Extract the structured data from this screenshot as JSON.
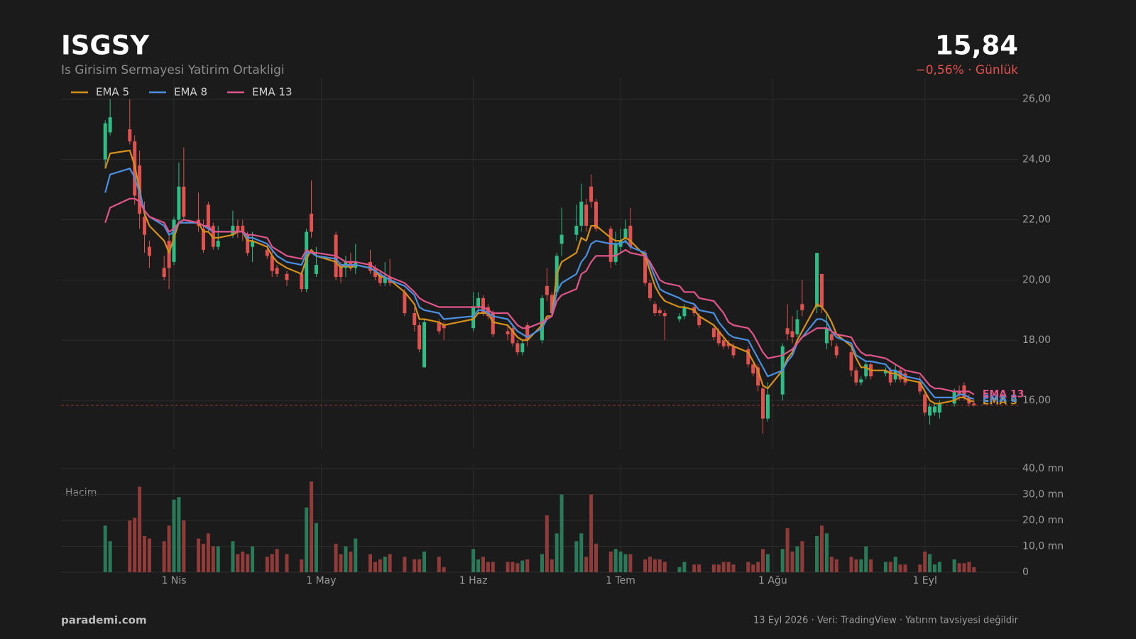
{
  "chart_data": {
    "type": "candlestick",
    "title": "ISGSY",
    "subtitle": "Is Girisim Sermayesi Yatirim Ortakligi",
    "last_price": {
      "value": 15.84,
      "label": "15,84"
    },
    "change_label": "−0,56%  ·  Günlük",
    "up_color": "#2dbd85",
    "down_color": "#e0524f",
    "x": [
      "2026-03-18",
      "2026-03-19",
      "2026-03-23",
      "2026-03-24",
      "2026-03-25",
      "2026-03-26",
      "2026-03-27",
      "2026-03-30",
      "2026-03-31",
      "2026-04-01",
      "2026-04-02",
      "2026-04-03",
      "2026-04-06",
      "2026-04-07",
      "2026-04-08",
      "2026-04-09",
      "2026-04-10",
      "2026-04-13",
      "2026-04-14",
      "2026-04-15",
      "2026-04-16",
      "2026-04-17",
      "2026-04-20",
      "2026-04-21",
      "2026-04-22",
      "2026-04-24",
      "2026-04-27",
      "2026-04-28",
      "2026-04-29",
      "2026-04-30",
      "2026-05-04",
      "2026-05-05",
      "2026-05-06",
      "2026-05-07",
      "2026-05-08",
      "2026-05-11",
      "2026-05-12",
      "2026-05-13",
      "2026-05-14",
      "2026-05-15",
      "2026-05-18",
      "2026-05-20",
      "2026-05-21",
      "2026-05-22",
      "2026-05-25",
      "2026-05-26",
      "2026-06-01",
      "2026-06-02",
      "2026-06-03",
      "2026-06-04",
      "2026-06-05",
      "2026-06-08",
      "2026-06-09",
      "2026-06-10",
      "2026-06-11",
      "2026-06-12",
      "2026-06-15",
      "2026-06-16",
      "2026-06-17",
      "2026-06-18",
      "2026-06-19",
      "2026-06-22",
      "2026-06-23",
      "2026-06-24",
      "2026-06-25",
      "2026-06-26",
      "2026-06-29",
      "2026-06-30",
      "2026-07-01",
      "2026-07-02",
      "2026-07-03",
      "2026-07-06",
      "2026-07-07",
      "2026-07-08",
      "2026-07-09",
      "2026-07-10",
      "2026-07-13",
      "2026-07-14",
      "2026-07-16",
      "2026-07-17",
      "2026-07-20",
      "2026-07-21",
      "2026-07-22",
      "2026-07-23",
      "2026-07-24",
      "2026-07-27",
      "2026-07-28",
      "2026-07-29",
      "2026-07-30",
      "2026-07-31",
      "2026-08-03",
      "2026-08-04",
      "2026-08-05",
      "2026-08-06",
      "2026-08-07",
      "2026-08-10",
      "2026-08-11",
      "2026-08-12",
      "2026-08-13",
      "2026-08-14",
      "2026-08-17",
      "2026-08-18",
      "2026-08-19",
      "2026-08-20",
      "2026-08-21",
      "2026-08-24",
      "2026-08-25",
      "2026-08-26",
      "2026-08-27",
      "2026-08-28",
      "2026-08-31",
      "2026-09-01",
      "2026-09-02",
      "2026-09-03",
      "2026-09-04",
      "2026-09-07",
      "2026-09-08",
      "2026-09-09",
      "2026-09-10",
      "2026-09-11"
    ],
    "open": [
      24.0,
      24.9,
      25.0,
      24.6,
      23.8,
      22.1,
      21.1,
      20.4,
      21.3,
      20.6,
      22.0,
      23.1,
      22.0,
      21.7,
      22.5,
      21.8,
      21.1,
      21.5,
      21.8,
      21.8,
      21.5,
      21.1,
      21.0,
      20.8,
      20.4,
      20.2,
      20.2,
      19.7,
      22.2,
      20.2,
      21.5,
      20.5,
      20.4,
      20.6,
      20.4,
      20.6,
      20.4,
      20.2,
      19.9,
      20.1,
      19.6,
      18.9,
      18.5,
      17.1,
      18.6,
      18.5,
      18.4,
      19.1,
      19.4,
      19.1,
      18.9,
      18.3,
      18.4,
      17.9,
      17.6,
      18.5,
      18.0,
      19.8,
      19.5,
      19.6,
      21.2,
      21.5,
      21.8,
      22.5,
      23.1,
      22.6,
      21.7,
      20.6,
      21.1,
      21.4,
      21.8,
      20.9,
      19.9,
      19.2,
      19.0,
      18.9,
      18.7,
      18.8,
      19.1,
      18.8,
      18.4,
      18.3,
      18.0,
      17.9,
      17.8,
      17.7,
      17.2,
      17.1,
      16.4,
      15.4,
      16.2,
      18.4,
      18.3,
      18.2,
      19.2,
      19.1,
      20.2,
      17.9,
      18.2,
      17.8,
      17.6,
      17.0,
      16.6,
      16.8,
      17.2,
      16.9,
      17.0,
      16.7,
      17.0,
      16.9,
      16.6,
      16.2,
      15.5,
      15.6,
      15.6,
      15.9,
      16.3,
      16.5,
      16.1,
      15.9
    ],
    "high": [
      25.3,
      26.0,
      26.0,
      24.8,
      24.3,
      22.6,
      21.3,
      20.8,
      21.5,
      22.1,
      23.9,
      24.4,
      22.9,
      22.0,
      22.6,
      21.9,
      21.8,
      22.3,
      22.0,
      22.0,
      21.6,
      21.6,
      21.2,
      21.0,
      20.5,
      20.3,
      20.3,
      21.7,
      23.3,
      21.1,
      21.6,
      20.6,
      20.8,
      20.9,
      21.2,
      21.0,
      20.5,
      20.3,
      20.6,
      20.7,
      19.7,
      19.1,
      18.6,
      18.7,
      18.7,
      18.6,
      19.6,
      19.6,
      19.5,
      19.2,
      19.0,
      18.5,
      18.5,
      18.0,
      18.0,
      18.6,
      19.5,
      20.4,
      19.6,
      20.9,
      22.4,
      22.5,
      23.2,
      22.7,
      23.5,
      22.7,
      21.8,
      21.6,
      21.7,
      22.0,
      22.4,
      21.0,
      20.0,
      19.3,
      19.1,
      19.0,
      18.9,
      19.2,
      19.2,
      18.9,
      18.5,
      18.4,
      18.1,
      18.0,
      17.9,
      17.8,
      17.3,
      17.2,
      16.5,
      16.6,
      17.9,
      19.2,
      18.8,
      19.0,
      20.0,
      20.9,
      20.2,
      18.9,
      18.3,
      17.9,
      17.7,
      17.1,
      16.8,
      17.3,
      17.3,
      17.1,
      17.1,
      17.2,
      17.1,
      17.0,
      16.8,
      16.3,
      15.9,
      15.9,
      16.0,
      16.4,
      16.5,
      16.6,
      16.2,
      16.0
    ],
    "low": [
      23.7,
      24.8,
      24.5,
      22.5,
      21.7,
      20.9,
      20.4,
      20.0,
      19.7,
      20.5,
      21.9,
      22.0,
      21.6,
      20.9,
      21.6,
      21.0,
      21.0,
      21.4,
      21.4,
      21.3,
      20.8,
      20.6,
      20.7,
      20.1,
      20.1,
      19.8,
      19.6,
      19.6,
      21.4,
      20.1,
      20.0,
      19.9,
      20.1,
      20.3,
      20.2,
      20.2,
      20.0,
      19.8,
      19.8,
      19.8,
      18.8,
      18.3,
      17.6,
      17.1,
      18.2,
      18.0,
      18.3,
      18.9,
      18.8,
      18.7,
      18.1,
      18.0,
      17.8,
      17.5,
      17.5,
      17.8,
      17.9,
      19.3,
      18.8,
      19.5,
      20.8,
      21.3,
      21.6,
      21.6,
      22.4,
      21.6,
      20.4,
      20.5,
      20.9,
      21.2,
      21.0,
      19.8,
      19.3,
      18.8,
      18.8,
      18.0,
      18.6,
      18.7,
      18.8,
      18.4,
      18.0,
      17.8,
      17.7,
      17.7,
      17.4,
      17.1,
      16.8,
      16.3,
      14.9,
      15.3,
      16.0,
      18.0,
      17.9,
      18.1,
      18.8,
      18.9,
      18.9,
      17.7,
      17.8,
      17.4,
      16.8,
      16.5,
      16.5,
      16.7,
      16.7,
      16.8,
      16.5,
      16.6,
      16.6,
      16.5,
      16.2,
      15.5,
      15.2,
      15.5,
      15.4,
      15.8,
      16.0,
      16.0,
      15.8,
      15.8
    ],
    "close": [
      25.2,
      25.4,
      24.6,
      22.8,
      22.2,
      21.5,
      20.8,
      20.1,
      20.4,
      22.0,
      23.1,
      22.1,
      21.8,
      21.0,
      21.7,
      21.1,
      21.3,
      21.8,
      21.6,
      21.6,
      20.9,
      21.3,
      20.8,
      20.3,
      20.2,
      20.0,
      19.7,
      21.6,
      21.6,
      20.5,
      20.1,
      20.1,
      20.6,
      20.4,
      20.6,
      20.3,
      20.1,
      19.9,
      20.1,
      19.9,
      18.9,
      18.5,
      17.7,
      18.6,
      18.3,
      18.4,
      19.1,
      19.4,
      18.9,
      18.8,
      18.2,
      18.2,
      17.9,
      17.6,
      17.9,
      18.0,
      19.4,
      19.5,
      18.9,
      20.8,
      21.5,
      21.8,
      22.6,
      21.8,
      22.6,
      21.7,
      20.6,
      21.2,
      21.3,
      21.7,
      21.1,
      19.9,
      19.4,
      18.9,
      18.9,
      18.8,
      18.8,
      19.1,
      18.9,
      18.5,
      18.1,
      17.9,
      17.8,
      17.8,
      17.5,
      17.2,
      16.9,
      16.5,
      15.4,
      16.2,
      17.8,
      18.2,
      18.1,
      18.7,
      19.0,
      20.9,
      19.1,
      18.4,
      18.0,
      17.5,
      17.0,
      16.6,
      16.7,
      17.2,
      16.8,
      17.0,
      16.6,
      17.0,
      16.7,
      16.6,
      16.3,
      15.6,
      15.8,
      15.8,
      15.9,
      16.3,
      16.2,
      16.1,
      15.9,
      15.84
    ],
    "series": [
      {
        "name": "EMA 5",
        "color": "#d4901a",
        "values": [
          23.7,
          24.2,
          24.3,
          23.8,
          23.0,
          22.2,
          21.8,
          21.3,
          20.9,
          21.4,
          21.9,
          21.9,
          21.9,
          21.6,
          21.6,
          21.4,
          21.4,
          21.5,
          21.6,
          21.6,
          21.3,
          21.3,
          21.1,
          20.8,
          20.6,
          20.4,
          20.2,
          20.7,
          21.0,
          20.8,
          20.6,
          20.4,
          20.5,
          20.4,
          20.5,
          20.4,
          20.3,
          20.1,
          20.1,
          20.0,
          19.6,
          19.2,
          18.7,
          18.7,
          18.6,
          18.5,
          18.7,
          18.9,
          18.9,
          18.9,
          18.6,
          18.5,
          18.3,
          18.1,
          18.0,
          18.0,
          18.5,
          18.8,
          18.8,
          20.2,
          20.6,
          20.9,
          21.4,
          21.3,
          21.8,
          21.8,
          21.4,
          21.3,
          21.3,
          21.4,
          21.3,
          20.8,
          20.3,
          19.8,
          19.5,
          19.3,
          19.1,
          19.1,
          19.0,
          18.8,
          18.5,
          18.3,
          18.1,
          17.9,
          17.8,
          17.6,
          17.3,
          17.0,
          16.5,
          16.4,
          17.0,
          17.4,
          17.6,
          18.0,
          18.3,
          19.2,
          19.1,
          18.9,
          18.6,
          18.2,
          17.8,
          17.4,
          17.1,
          17.1,
          17.0,
          17.0,
          16.9,
          16.9,
          16.8,
          16.7,
          16.6,
          16.3,
          16.0,
          15.9,
          15.9,
          16.0,
          16.1,
          16.1,
          16.0,
          15.97
        ]
      },
      {
        "name": "EMA 8",
        "color": "#4a8fe0",
        "values": [
          22.9,
          23.5,
          23.7,
          23.4,
          22.9,
          22.3,
          22.1,
          21.8,
          21.5,
          21.6,
          21.9,
          21.9,
          21.9,
          21.8,
          21.7,
          21.6,
          21.6,
          21.6,
          21.6,
          21.6,
          21.4,
          21.4,
          21.2,
          21.0,
          20.8,
          20.6,
          20.5,
          20.9,
          20.9,
          20.8,
          20.7,
          20.5,
          20.5,
          20.5,
          20.5,
          20.4,
          20.3,
          20.2,
          20.1,
          20.0,
          19.8,
          19.5,
          19.1,
          19.0,
          18.9,
          18.7,
          18.8,
          19.0,
          19.0,
          18.9,
          18.8,
          18.7,
          18.5,
          18.3,
          18.2,
          18.1,
          18.4,
          18.7,
          18.8,
          19.6,
          19.9,
          20.2,
          20.6,
          20.8,
          21.2,
          21.3,
          21.2,
          21.2,
          21.2,
          21.3,
          21.1,
          20.9,
          20.5,
          20.1,
          19.7,
          19.6,
          19.4,
          19.3,
          19.2,
          19.0,
          18.9,
          18.6,
          18.4,
          18.2,
          18.1,
          18.0,
          17.7,
          17.4,
          17.1,
          16.8,
          17.0,
          17.3,
          17.5,
          17.9,
          18.1,
          18.7,
          18.7,
          18.6,
          18.3,
          18.1,
          17.9,
          17.5,
          17.4,
          17.3,
          17.3,
          17.2,
          17.0,
          17.0,
          16.9,
          16.8,
          16.7,
          16.5,
          16.3,
          16.1,
          16.1,
          16.1,
          16.2,
          16.2,
          16.1,
          16.05
        ]
      },
      {
        "name": "EMA 13",
        "color": "#e0558a",
        "values": [
          21.9,
          22.4,
          22.7,
          22.7,
          22.6,
          22.3,
          22.1,
          21.9,
          21.6,
          21.7,
          21.9,
          22.0,
          21.9,
          21.8,
          21.8,
          21.6,
          21.6,
          21.6,
          21.6,
          21.6,
          21.5,
          21.5,
          21.4,
          21.1,
          21.0,
          20.8,
          20.7,
          21.0,
          20.9,
          20.9,
          20.8,
          20.7,
          20.6,
          20.6,
          20.6,
          20.5,
          20.4,
          20.3,
          20.2,
          20.1,
          19.9,
          19.6,
          19.4,
          19.3,
          19.1,
          19.1,
          19.1,
          19.1,
          19.1,
          19.0,
          18.9,
          18.9,
          18.7,
          18.5,
          18.4,
          18.4,
          18.6,
          18.7,
          18.8,
          19.3,
          19.5,
          19.7,
          20.2,
          20.3,
          20.6,
          20.8,
          20.8,
          20.8,
          20.9,
          21.0,
          20.9,
          20.8,
          20.6,
          20.3,
          20.0,
          19.9,
          19.8,
          19.6,
          19.6,
          19.4,
          19.3,
          19.1,
          18.9,
          18.6,
          18.5,
          18.4,
          18.2,
          17.9,
          17.6,
          17.4,
          17.5,
          17.6,
          17.7,
          17.9,
          18.1,
          18.4,
          18.4,
          18.4,
          18.3,
          18.2,
          18.1,
          17.8,
          17.6,
          17.5,
          17.5,
          17.4,
          17.3,
          17.2,
          17.1,
          17.0,
          16.9,
          16.7,
          16.5,
          16.4,
          16.4,
          16.3,
          16.3,
          16.3,
          16.3,
          16.2
        ]
      }
    ],
    "xlim": [
      "2026-03-09",
      "2026-09-20"
    ],
    "xticks": [
      {
        "value": "2026-04-01",
        "label": "1 Nis"
      },
      {
        "value": "2026-05-01",
        "label": "1 May"
      },
      {
        "value": "2026-06-01",
        "label": "1 Haz"
      },
      {
        "value": "2026-07-01",
        "label": "1 Tem"
      },
      {
        "value": "2026-08-01",
        "label": "1 Ağu"
      },
      {
        "value": "2026-09-01",
        "label": "1 Eyl"
      }
    ],
    "ylim": [
      14.4,
      26.7
    ],
    "yticks": [
      {
        "value": 16,
        "label": "16,00"
      },
      {
        "value": 18,
        "label": "18,00"
      },
      {
        "value": 20,
        "label": "20,00"
      },
      {
        "value": 22,
        "label": "22,00"
      },
      {
        "value": 24,
        "label": "24,00"
      },
      {
        "value": 26,
        "label": "26,00"
      }
    ],
    "grid": true,
    "legend": "top-left",
    "volume": {
      "label": "Hacim",
      "up_color": "#2a7a59",
      "down_color": "#8e3b39",
      "values": [
        18,
        12,
        20,
        21,
        33,
        14,
        13,
        12,
        18,
        28,
        29,
        20,
        13,
        11,
        15,
        10,
        10,
        12,
        7,
        8,
        7,
        10,
        6,
        7,
        9,
        7,
        5,
        25,
        35,
        19,
        11,
        7,
        10,
        8,
        13,
        7,
        4,
        5,
        6,
        7,
        6,
        5,
        5,
        8,
        6,
        2,
        9,
        5,
        6,
        4,
        4,
        4,
        4,
        3.5,
        4.5,
        5,
        7,
        22,
        5,
        15,
        30,
        12,
        15,
        6,
        30,
        11,
        8,
        9,
        8,
        7,
        7,
        5,
        6,
        5,
        5,
        4,
        2,
        4,
        3,
        3,
        3,
        3,
        4,
        4,
        3,
        4,
        3,
        4,
        9,
        7,
        9,
        17,
        8,
        10,
        12,
        14,
        18,
        15,
        6,
        5,
        6,
        5,
        5,
        10,
        5,
        4,
        4,
        6,
        3,
        3,
        3,
        8,
        7,
        3,
        4,
        5,
        3.5,
        3.5,
        4,
        2
      ],
      "ylim": [
        0,
        40
      ],
      "yticks": [
        0,
        {
          "value": 10,
          "label": "10,0 mn"
        },
        {
          "value": 20,
          "label": "20,0 mn"
        },
        {
          "value": 30,
          "label": "30,0 mn"
        },
        {
          "value": 40,
          "label": "40,0 mn"
        }
      ]
    }
  },
  "footer": {
    "brand": "parademi.com",
    "note": "13 Eyl 2026  ·  Veri: TradingView  ·  Yatırım tavsiyesi değildir"
  }
}
